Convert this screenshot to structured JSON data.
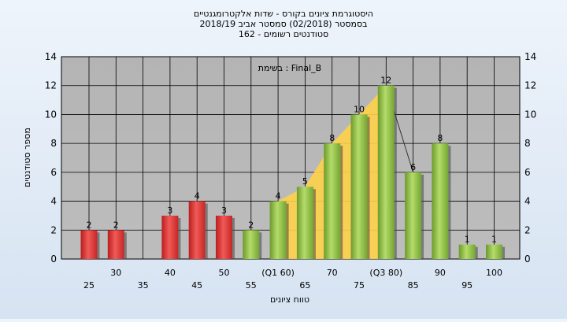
{
  "colors": {
    "background": "#dde8f4",
    "plot_bg": "#b7b7b7",
    "red_bar": "#e8403f",
    "green_bar": "#97c24a",
    "fill_area": "#ffd24a",
    "grid": "#000000"
  },
  "chart_data": {
    "type": "bar",
    "title_lines": [
      "היסטוגרמת ציונים בקורס - שדות אלקטרומגנטיים",
      "בסמסטר  (02/2018)  סמסטר אביב 2018/19",
      "סטודנטים רשומים - 162"
    ],
    "annotation": "בשימת : Final_B",
    "xlabel": "טווח ציונים",
    "ylabel": "מספר סטודנטים",
    "ylim": [
      0,
      14
    ],
    "yticks": [
      0,
      2,
      4,
      6,
      8,
      10,
      12,
      14
    ],
    "categories": [
      "25",
      "30",
      "35",
      "40",
      "45",
      "50",
      "55",
      "(Q1 60)",
      "65",
      "70",
      "75",
      "(Q3 80)",
      "85",
      "90",
      "95",
      "100"
    ],
    "values": [
      2,
      2,
      0,
      3,
      4,
      3,
      2,
      4,
      5,
      8,
      10,
      12,
      6,
      8,
      1,
      1
    ],
    "colors": [
      "red",
      "red",
      "red",
      "red",
      "red",
      "red",
      "green",
      "green",
      "green",
      "green",
      "green",
      "green",
      "green",
      "green",
      "green",
      "green"
    ],
    "iqr_highlight": {
      "from": "(Q1 60)",
      "to": "(Q3 80)"
    }
  }
}
